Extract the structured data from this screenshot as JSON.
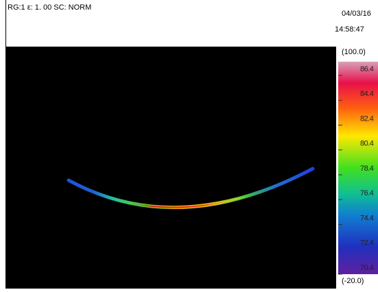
{
  "header": {
    "status": "RG:1 ε: 1. 00 SC: NORM",
    "date": "04/03/16",
    "time": "14:58:47"
  },
  "scale": {
    "max": "(100.0)",
    "min": "(-20.0)",
    "labels": [
      "86.4",
      "84.4",
      "82.4",
      "80.4",
      "78.4",
      "76.4",
      "74.4",
      "72.4",
      "70.4"
    ]
  }
}
